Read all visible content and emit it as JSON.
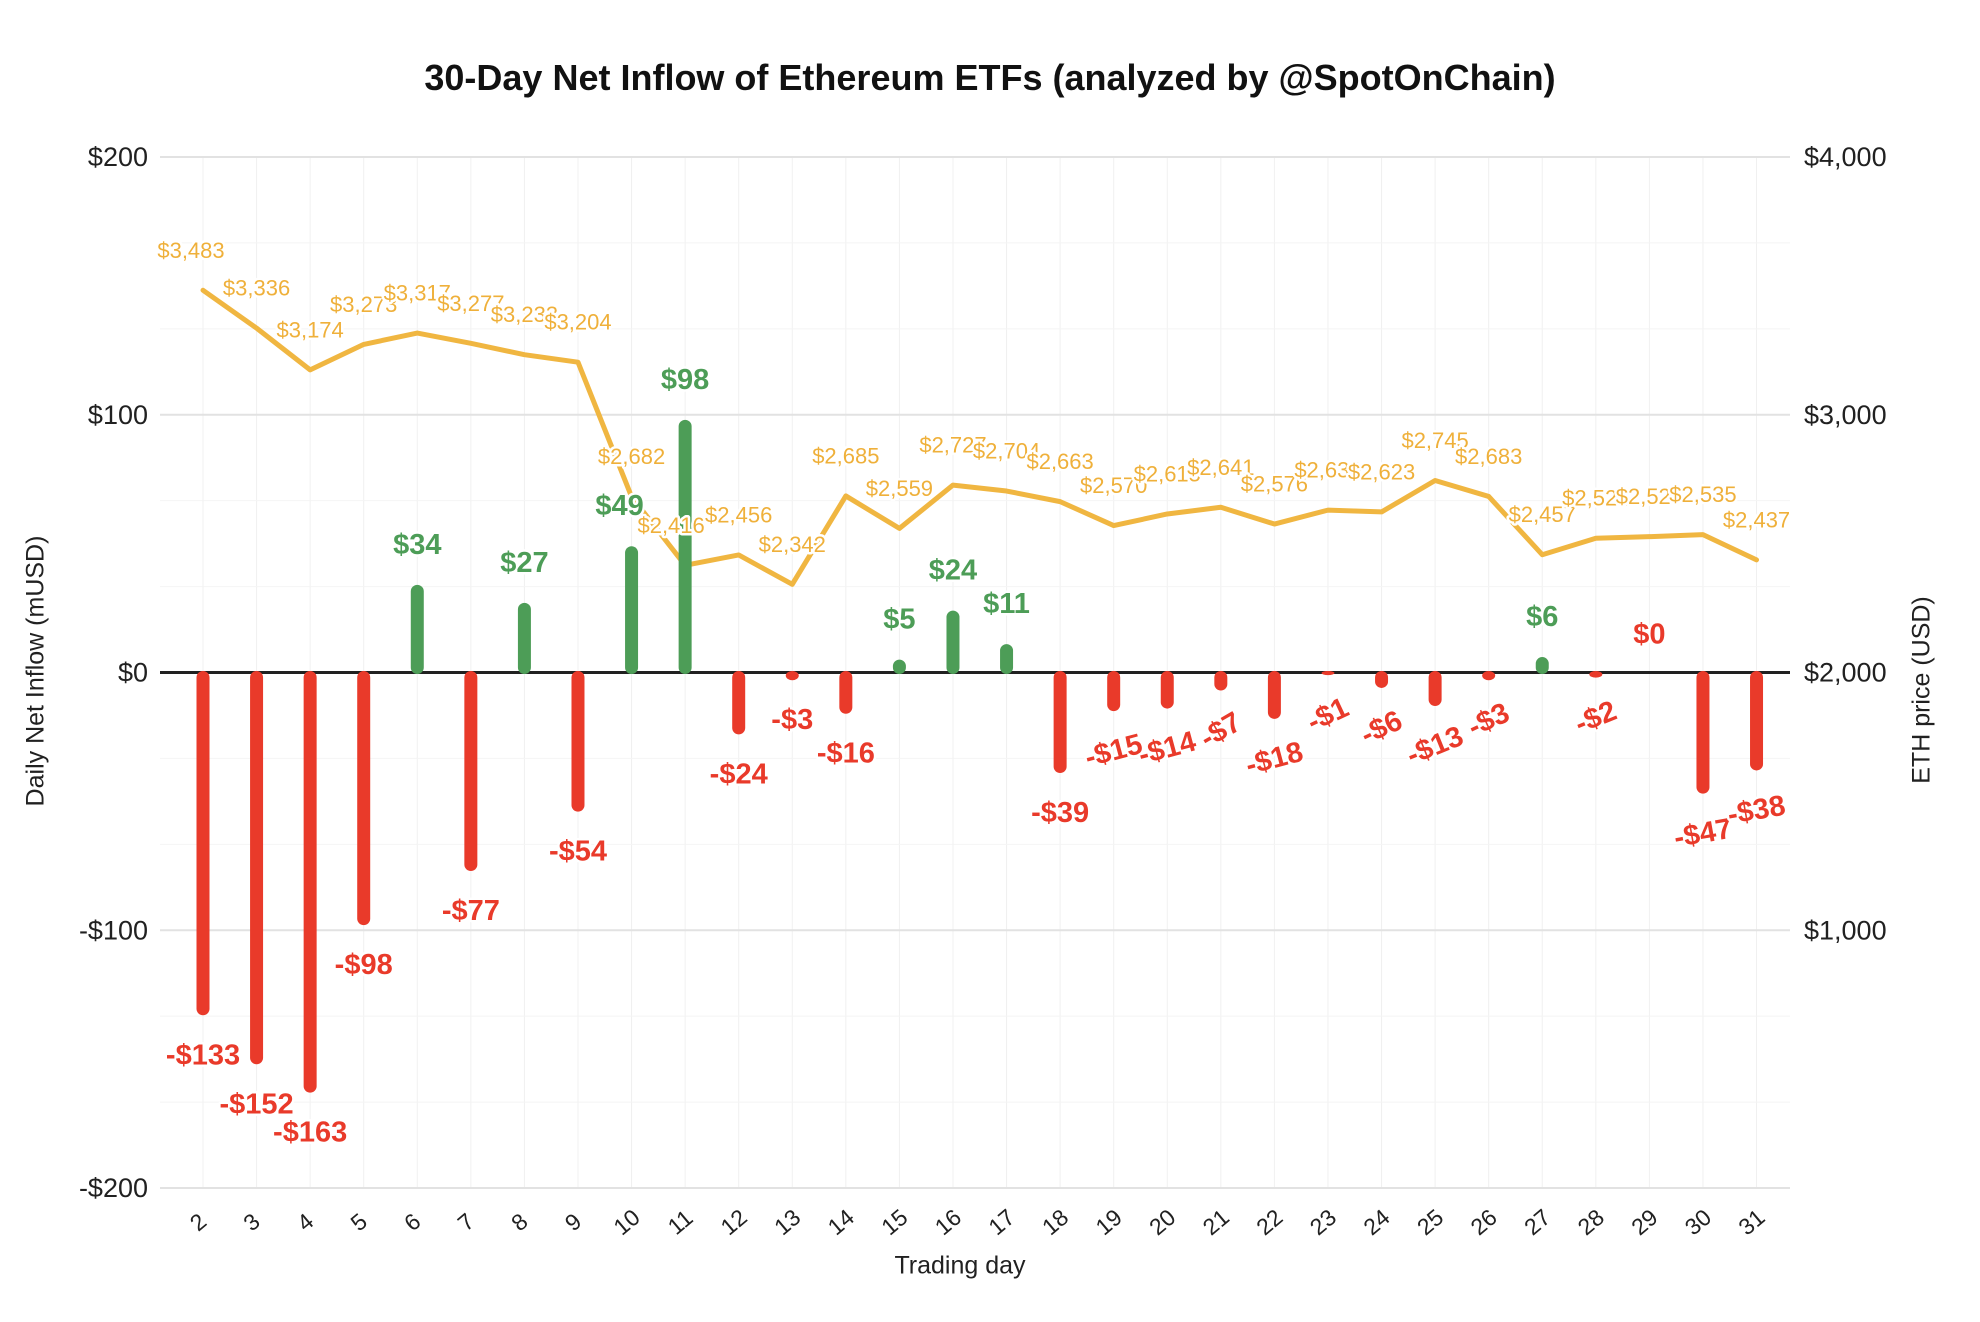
{
  "title": "30-Day Net Inflow of Ethereum ETFs (analyzed by @SpotOnChain)",
  "axes": {
    "left": {
      "title": "Daily Net Inflow (mUSD)",
      "ticks": [
        {
          "value": 200,
          "label": "$200"
        },
        {
          "value": 100,
          "label": "$100"
        },
        {
          "value": 0,
          "label": "$0"
        },
        {
          "value": -100,
          "label": "-$100"
        },
        {
          "value": -200,
          "label": "-$200"
        }
      ]
    },
    "right": {
      "title": "ETH price (USD)",
      "ticks": [
        {
          "value": 4000,
          "label": "$4,000"
        },
        {
          "value": 3000,
          "label": "$3,000"
        },
        {
          "value": 2000,
          "label": "$2,000"
        },
        {
          "value": 1000,
          "label": "$1,000"
        }
      ]
    },
    "x": {
      "title": "Trading day"
    }
  },
  "colors": {
    "inflow_positive": "#4d9d57",
    "inflow_negative": "#e93a2a",
    "price_line": "#f0b641",
    "price_label": "#efb03a",
    "axis_text": "#212121",
    "zero_axis": "#212121",
    "grid_major": "#e2e2e2",
    "grid_minor": "#f4f4f4",
    "grid_vertical": "#f0f0f0"
  },
  "chart_data": {
    "type": "bar+line combo",
    "title": "30-Day Net Inflow of Ethereum ETFs (analyzed by @SpotOnChain)",
    "xlabel": "Trading day",
    "grid": true,
    "legend_position": "none",
    "categories": [
      2,
      3,
      4,
      5,
      6,
      7,
      8,
      9,
      10,
      11,
      12,
      13,
      14,
      15,
      16,
      17,
      18,
      19,
      20,
      21,
      22,
      23,
      24,
      25,
      26,
      27,
      28,
      29,
      30,
      31
    ],
    "series": [
      {
        "name": "Daily Net Inflow (mUSD)",
        "type": "bar",
        "axis": "left",
        "ylim": [
          -200,
          200
        ],
        "values": [
          -133,
          -152,
          -163,
          -98,
          34,
          -77,
          27,
          -54,
          49,
          98,
          -24,
          -3,
          -16,
          5,
          24,
          11,
          -39,
          -15,
          -14,
          -7,
          -18,
          -1,
          -6,
          -13,
          -3,
          6,
          -2,
          0,
          -47,
          -38
        ],
        "labels": [
          "-$133",
          "-$152",
          "-$163",
          "-$98",
          "$34",
          "-$77",
          "$27",
          "-$54",
          "$49",
          "$98",
          "-$24",
          "-$3",
          "-$16",
          "$5",
          "$24",
          "$11",
          "-$39",
          "-$15",
          "-$14",
          "-$7",
          "-$18",
          "-$1",
          "-$6",
          "-$13",
          "-$3",
          "$6",
          "-$2",
          "$0",
          "-$47",
          "-$38"
        ]
      },
      {
        "name": "ETH price (USD)",
        "type": "line",
        "axis": "right",
        "ylim": [
          0,
          4000
        ],
        "values": [
          3483,
          3336,
          3174,
          3273,
          3317,
          3277,
          3233,
          3204,
          2682,
          2416,
          2456,
          2342,
          2685,
          2559,
          2727,
          2704,
          2663,
          2570,
          2615,
          2641,
          2576,
          2630,
          2623,
          2745,
          2683,
          2457,
          2521,
          2527,
          2535,
          2437
        ],
        "labels": [
          "$3,483",
          "$3,336",
          "$3,174",
          "$3,273",
          "$3,317",
          "$3,277",
          "$3,233",
          "$3,204",
          "$2,682",
          "$2,416",
          "$2,456",
          "$2,342",
          "$2,685",
          "$2,559",
          "$2,727",
          "$2,704",
          "$2,663",
          "$2,570",
          "$2,615",
          "$2,641",
          "$2,576",
          "$2,630",
          "$2,623",
          "$2,745",
          "$2,683",
          "$2,457",
          "$2,521",
          "$2,527",
          "$2,535",
          "$2,437"
        ]
      }
    ]
  }
}
